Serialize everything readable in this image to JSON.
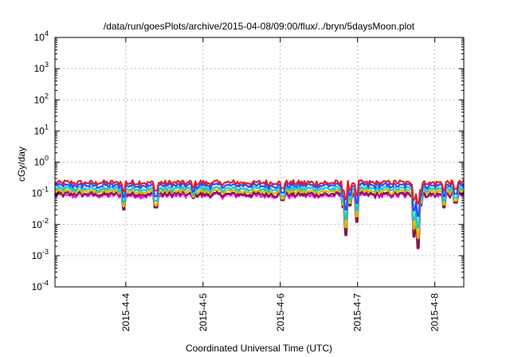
{
  "chart_data": {
    "type": "line",
    "title": "/data/run/goesPlots/archive/2015-04-08/09:00/flux/../bryn/5daysMoon.plot",
    "xlabel": "Coordinated Universal Time (UTC)",
    "ylabel": "cGy/day",
    "y_scale": "log",
    "ylim": [
      0.0001,
      10000
    ],
    "y_ticks": [
      {
        "base": "10",
        "exp": "-4",
        "value": 0.0001
      },
      {
        "base": "10",
        "exp": "-3",
        "value": 0.001
      },
      {
        "base": "10",
        "exp": "-2",
        "value": 0.01
      },
      {
        "base": "10",
        "exp": "-1",
        "value": 0.1
      },
      {
        "base": "10",
        "exp": "0",
        "value": 1
      },
      {
        "base": "10",
        "exp": "1",
        "value": 10
      },
      {
        "base": "10",
        "exp": "2",
        "value": 100
      },
      {
        "base": "10",
        "exp": "3",
        "value": 1000
      },
      {
        "base": "10",
        "exp": "4",
        "value": 10000
      }
    ],
    "x_scale": "date",
    "xlim": [
      "2015-04-03T02:00",
      "2015-04-08T09:00"
    ],
    "x_ticks": [
      "2015-4-4",
      "2015-4-5",
      "2015-4-6",
      "2015-4-7",
      "2015-4-8"
    ],
    "x_tick_values": [
      "2015-04-04T00:00",
      "2015-04-05T00:00",
      "2015-04-06T00:00",
      "2015-04-07T00:00",
      "2015-04-08T00:00"
    ],
    "grid": true,
    "legend": "none",
    "baseline_values": [
      0.22,
      0.18,
      0.14,
      0.115,
      0.095,
      0.085
    ],
    "series": [
      {
        "color": "#e0202a",
        "values": [
          0.24,
          0.25,
          0.22,
          0.26,
          0.23,
          0.25
        ]
      },
      {
        "color": "#2a4cff",
        "values": [
          0.22,
          0.23,
          0.2,
          0.24,
          0.21,
          0.23
        ]
      },
      {
        "color": "#17c7d6",
        "values": [
          0.17,
          0.18,
          0.16,
          0.18,
          0.17,
          0.18
        ]
      },
      {
        "color": "#d4b810",
        "values": [
          0.135,
          0.14,
          0.13,
          0.14,
          0.135,
          0.14
        ]
      },
      {
        "color": "#7a1e3a",
        "values": [
          0.11,
          0.115,
          0.105,
          0.115,
          0.11,
          0.115
        ]
      },
      {
        "color": "#ff00ff",
        "values": [
          0.088,
          0.092,
          0.085,
          0.09,
          0.087,
          0.09
        ]
      }
    ],
    "dips": [
      {
        "x": "2015-04-03T23:30",
        "value": 0.03
      },
      {
        "x": "2015-04-04T09:20",
        "value": 0.035
      },
      {
        "x": "2015-04-04T21:00",
        "value": 0.07
      },
      {
        "x": "2015-04-06T00:40",
        "value": 0.06
      },
      {
        "x": "2015-04-06T19:30",
        "value": 0.035
      },
      {
        "x": "2015-04-06T20:20",
        "value": 0.0045
      },
      {
        "x": "2015-04-06T21:40",
        "value": 0.04
      },
      {
        "x": "2015-04-06T23:50",
        "value": 0.012
      },
      {
        "x": "2015-04-07T18:10",
        "value": 0.015
      },
      {
        "x": "2015-04-07T17:30",
        "value": 0.004
      },
      {
        "x": "2015-04-07T18:40",
        "value": 0.0017
      },
      {
        "x": "2015-04-07T19:30",
        "value": 0.04
      },
      {
        "x": "2015-04-08T03:00",
        "value": 0.035
      },
      {
        "x": "2015-04-08T06:30",
        "value": 0.05
      }
    ],
    "line_colors": [
      "#e0202a",
      "#2a4cff",
      "#17c7d6",
      "#d4b810",
      "#7a1e3a",
      "#ff00ff"
    ]
  }
}
